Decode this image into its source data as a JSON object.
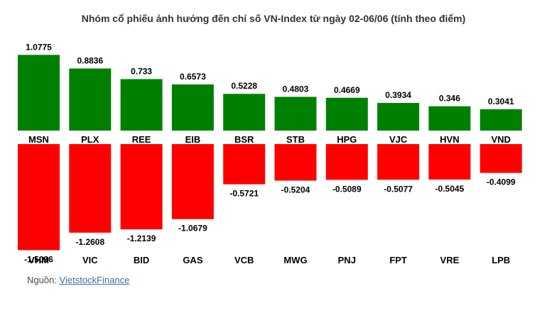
{
  "chart_data": {
    "type": "bar",
    "title": "Nhóm cổ phiếu ảnh hưởng đến chỉ số VN-Index từ ngày 02-06/06 (tính theo điểm)",
    "series": [
      {
        "categories": [
          "MSN",
          "PLX",
          "REE",
          "EIB",
          "BSR",
          "STB",
          "HPG",
          "VJC",
          "HVN",
          "VND"
        ],
        "values": [
          1.0775,
          0.8836,
          0.733,
          0.6573,
          0.5228,
          0.4803,
          0.4669,
          0.3934,
          0.346,
          0.3041
        ],
        "labels": [
          "1.0775",
          "0.8836",
          "0.733",
          "0.6573",
          "0.5228",
          "0.4803",
          "0.4669",
          "0.3934",
          "0.346",
          "0.3041"
        ],
        "color": "#008000"
      },
      {
        "categories": [
          "VHM",
          "VIC",
          "BID",
          "GAS",
          "VCB",
          "MWG",
          "PNJ",
          "FPT",
          "VRE",
          "LPB"
        ],
        "values": [
          -1.5096,
          -1.2608,
          -1.2139,
          -1.0679,
          -0.5721,
          -0.5204,
          -0.5089,
          -0.5077,
          -0.5045,
          -0.4099
        ],
        "labels": [
          "-1.5096",
          "-1.2608",
          "-1.2139",
          "-1.0679",
          "-0.5721",
          "-0.5204",
          "-0.5089",
          "-0.5077",
          "-0.5045",
          "-0.4099"
        ],
        "color": "#ff0000"
      }
    ],
    "grid": false,
    "legend": "none"
  },
  "source": {
    "prefix": "Nguồn: ",
    "link_text": "VietstockFinance"
  }
}
